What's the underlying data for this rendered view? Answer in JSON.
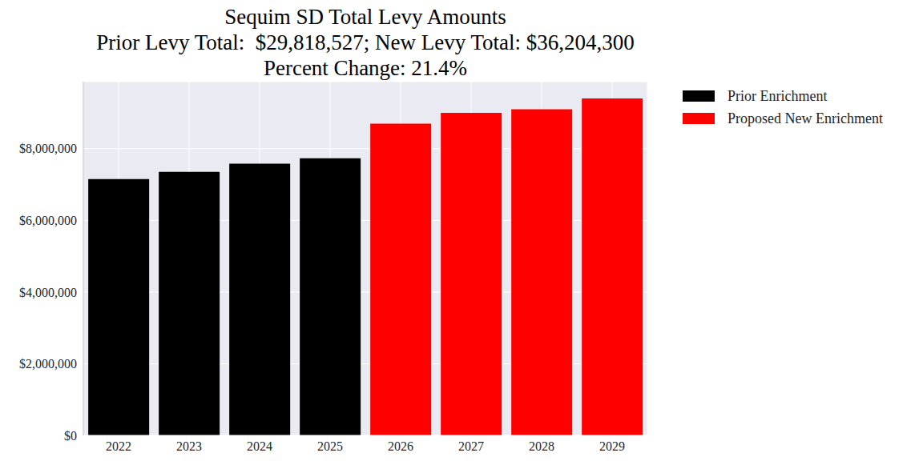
{
  "chart_data": {
    "type": "bar",
    "title": "Sequim SD Total Levy Amounts\nPrior Levy Total:  $29,818,527; New Levy Total: $36,204,300\nPercent Change: 21.4%",
    "categories": [
      "2022",
      "2023",
      "2024",
      "2025",
      "2026",
      "2027",
      "2028",
      "2029"
    ],
    "series": [
      {
        "name": "Prior Enrichment",
        "color": "#000000",
        "values": [
          7150000,
          7350000,
          7580000,
          7730000,
          null,
          null,
          null,
          null
        ]
      },
      {
        "name": "Proposed New Enrichment",
        "color": "#ff0000",
        "values": [
          null,
          null,
          null,
          null,
          8700000,
          9000000,
          9100000,
          9400000
        ]
      }
    ],
    "stacked": true,
    "ylim": [
      0,
      9870000
    ],
    "yticks": [
      {
        "value": 0,
        "label": "$0"
      },
      {
        "value": 2000000,
        "label": "$2,000,000"
      },
      {
        "value": 4000000,
        "label": "$4,000,000"
      },
      {
        "value": 6000000,
        "label": "$6,000,000"
      },
      {
        "value": 8000000,
        "label": "$8,000,000"
      }
    ],
    "grid": true,
    "legend": "upper right outside"
  }
}
